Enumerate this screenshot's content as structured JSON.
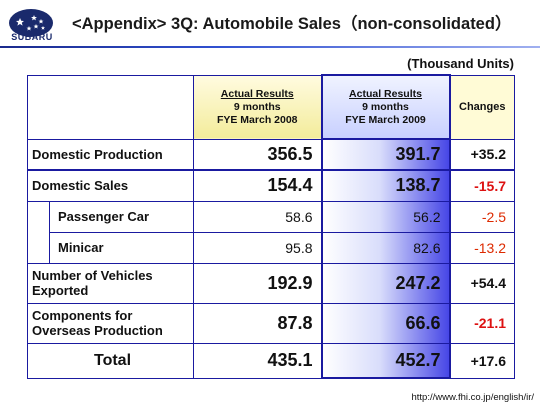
{
  "header": {
    "logo_text": "SUBARU",
    "title": "<Appendix> 3Q: Automobile Sales（non-consolidated）"
  },
  "units": "(Thousand Units)",
  "columns": {
    "col1": {
      "line1": "Actual Results",
      "line2": "9 months",
      "line3": "FYE March 2008"
    },
    "col2": {
      "line1": "Actual Results",
      "line2": "9 months",
      "line3": "FYE March 2009"
    },
    "col3": "Changes"
  },
  "rows": {
    "domestic_production": {
      "label": "Domestic Production",
      "v2008": "356.5",
      "v2009": "391.7",
      "change": "+35.2"
    },
    "domestic_sales": {
      "label": "Domestic Sales",
      "v2008": "154.4",
      "v2009": "138.7",
      "change": "-15.7"
    },
    "passenger_car": {
      "label": "Passenger Car",
      "v2008": "58.6",
      "v2009": "56.2",
      "change": "-2.5"
    },
    "minicar": {
      "label": "Minicar",
      "v2008": "95.8",
      "v2009": "82.6",
      "change": "-13.2"
    },
    "exported": {
      "label_line1": "Number of Vehicles",
      "label_line2": "Exported",
      "v2008": "192.9",
      "v2009": "247.2",
      "change": "+54.4"
    },
    "overseas": {
      "label_line1": "Components for",
      "label_line2": "Overseas Production",
      "v2008": "87.8",
      "v2009": "66.6",
      "change": "-21.1"
    },
    "total": {
      "label": "Total",
      "v2008": "435.1",
      "v2009": "452.7",
      "change": "+17.6"
    }
  },
  "footer_url": "http://www.fhi.co.jp/english/ir/",
  "colors": {
    "accent_blue": "#1a1aa0",
    "negative_red": "#dd1111",
    "header_yellow": "#f3ec9a"
  }
}
